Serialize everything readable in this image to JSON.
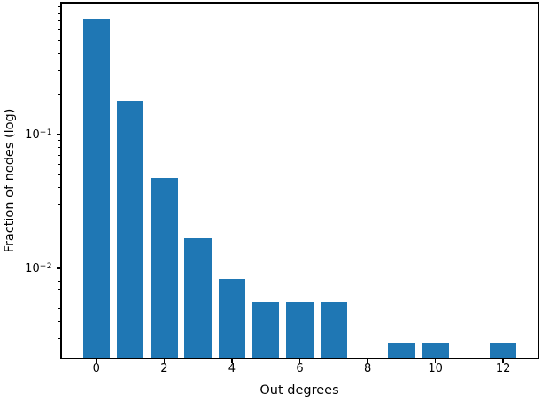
{
  "chart_data": {
    "type": "bar",
    "title": "",
    "xlabel": "Out degrees",
    "ylabel": "Fraction of nodes (log)",
    "x": [
      0,
      1,
      2,
      3,
      4,
      5,
      6,
      7,
      9,
      10,
      12
    ],
    "values": [
      0.731,
      0.178,
      0.047,
      0.0167,
      0.0083,
      0.0056,
      0.0056,
      0.0056,
      0.0028,
      0.0028,
      0.0028
    ],
    "bar_width": 0.8,
    "bar_color": "#1f77b4",
    "yscale": "log",
    "xlim": [
      -1.04,
      13.04
    ],
    "ylim": [
      0.00212,
      0.961
    ],
    "x_ticks": [
      0,
      2,
      4,
      6,
      8,
      10,
      12
    ],
    "y_major_ticks": [
      {
        "value": 0.1,
        "base": "10",
        "exp": "−1"
      },
      {
        "value": 0.01,
        "base": "10",
        "exp": "−2"
      }
    ],
    "grid": false,
    "legend": null
  }
}
